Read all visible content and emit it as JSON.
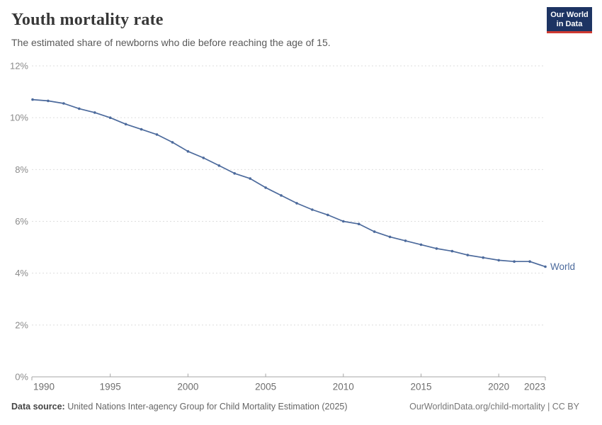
{
  "header": {
    "title": "Youth mortality rate",
    "subtitle": "The estimated share of newborns who die before reaching the age of 15.",
    "logo": {
      "line1": "Our World",
      "line2": "in Data"
    }
  },
  "chart_data": {
    "type": "line",
    "title": "Youth mortality rate",
    "subtitle": "The estimated share of newborns who die before reaching the age of 15.",
    "ylabel": "",
    "xlabel": "",
    "xlim": [
      1990,
      2023
    ],
    "ylim": [
      0,
      12
    ],
    "grid": true,
    "legend_position": "end-of-line",
    "end_label": "World",
    "x": [
      1990,
      1991,
      1992,
      1993,
      1994,
      1995,
      1996,
      1997,
      1998,
      1999,
      2000,
      2001,
      2002,
      2003,
      2004,
      2005,
      2006,
      2007,
      2008,
      2009,
      2010,
      2011,
      2012,
      2013,
      2014,
      2015,
      2016,
      2017,
      2018,
      2019,
      2020,
      2021,
      2022,
      2023
    ],
    "series": [
      {
        "name": "World",
        "color": "#4c6a9c",
        "values": [
          10.7,
          10.65,
          10.55,
          10.35,
          10.2,
          10.0,
          9.75,
          9.55,
          9.35,
          9.05,
          8.7,
          8.45,
          8.15,
          7.85,
          7.65,
          7.3,
          7.0,
          6.7,
          6.45,
          6.25,
          6.0,
          5.9,
          5.6,
          5.4,
          5.25,
          5.1,
          4.95,
          4.85,
          4.7,
          4.6,
          4.5,
          4.45,
          4.45,
          4.25
        ]
      }
    ],
    "x_tick_years": [
      1990,
      1995,
      2000,
      2005,
      2010,
      2015,
      2020,
      2023
    ],
    "x_tick_labels": [
      "1990",
      "1995",
      "2000",
      "2005",
      "2010",
      "2015",
      "2020",
      "2023"
    ],
    "y_tick_values": [
      0,
      2,
      4,
      6,
      8,
      10,
      12
    ],
    "y_tick_labels": [
      "0%",
      "2%",
      "4%",
      "6%",
      "8%",
      "10%",
      "12%"
    ]
  },
  "colors": {
    "line": "#4c6a9c",
    "grid": "#dedede",
    "axis": "#a5a5a5",
    "y_label": "#8b8b8b",
    "x_label": "#6e6e6e",
    "logo_bg": "#1d3463",
    "logo_accent": "#cf3a31"
  },
  "footer": {
    "source_label": "Data source:",
    "source_text": " United Nations Inter-agency Group for Child Mortality Estimation (2025)",
    "attribution": "OurWorldinData.org/child-mortality | CC BY"
  }
}
